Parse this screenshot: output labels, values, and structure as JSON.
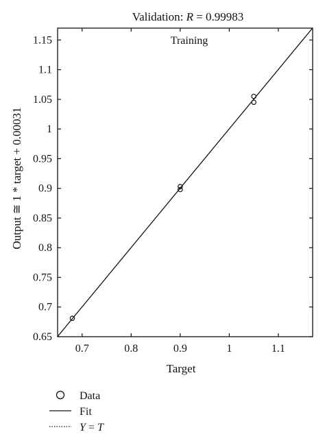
{
  "chart_data": {
    "type": "scatter",
    "title_prefix": "Validation: ",
    "title_var": "R",
    "title_value": " = 0.99983",
    "annotation": "Training",
    "xlabel": "Target",
    "ylabel": "Output ≅ 1 * target + 0.00031",
    "xlim": [
      0.65,
      1.17
    ],
    "ylim": [
      0.65,
      1.17
    ],
    "x_ticks": [
      0.7,
      0.8,
      0.9,
      1,
      1.1
    ],
    "x_tick_labels": [
      "0.7",
      "0.8",
      "0.9",
      "1",
      "1.1"
    ],
    "y_ticks": [
      0.65,
      0.7,
      0.75,
      0.8,
      0.85,
      0.9,
      0.95,
      1,
      1.05,
      1.1,
      1.15
    ],
    "y_tick_labels": [
      "0.65",
      "0.7",
      "0.75",
      "0.8",
      "0.85",
      "0.9",
      "0.95",
      "1",
      "1.05",
      "1.1",
      "1.15"
    ],
    "grid": false,
    "points": [
      {
        "x": 0.68,
        "y": 0.681
      },
      {
        "x": 0.9,
        "y": 0.903
      },
      {
        "x": 0.9,
        "y": 0.898
      },
      {
        "x": 1.05,
        "y": 1.055
      },
      {
        "x": 1.05,
        "y": 1.045
      }
    ],
    "fit": {
      "slope": 1,
      "intercept": 0.00031
    },
    "legend": {
      "placement": "bottom-left",
      "data_label": "Data",
      "fit_label": "Fit",
      "yt_label_y": "Y",
      "yt_label_eq": " = ",
      "yt_label_t": "T"
    },
    "colors": {
      "axis": "#111111",
      "marker": "#111111",
      "fit": "#111111",
      "background": "#ffffff"
    }
  }
}
